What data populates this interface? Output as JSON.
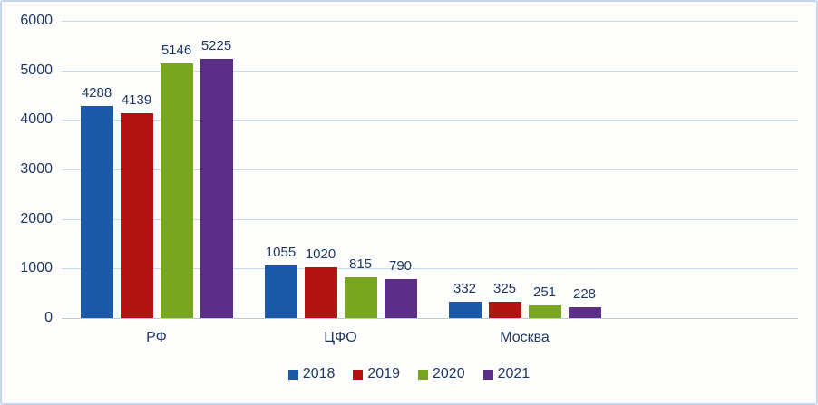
{
  "chart_data": {
    "type": "bar",
    "title": "",
    "xlabel": "",
    "ylabel": "",
    "categories": [
      "РФ",
      "ЦФО",
      "Москва"
    ],
    "series": [
      {
        "name": "2018",
        "color": "#1A5AA8",
        "values": [
          4288,
          1055,
          332
        ]
      },
      {
        "name": "2019",
        "color": "#B21414",
        "values": [
          4139,
          1020,
          325
        ]
      },
      {
        "name": "2020",
        "color": "#7AA520",
        "values": [
          5146,
          815,
          251
        ]
      },
      {
        "name": "2021",
        "color": "#5C2E87",
        "values": [
          5225,
          790,
          228
        ]
      }
    ],
    "ylim": [
      0,
      6000
    ],
    "ytick_step": 1000,
    "ytick_labels": [
      "0",
      "1000",
      "2000",
      "3000",
      "4000",
      "5000",
      "6000"
    ],
    "grid": true,
    "legend_position": "bottom",
    "category_slots": 4,
    "colors": {
      "text": "#1F3864",
      "gridline": "#C9D7EA",
      "axis_line": "#B7CCE4",
      "frame_border": "#C5D6EE",
      "background": "#FDFDFC"
    }
  }
}
